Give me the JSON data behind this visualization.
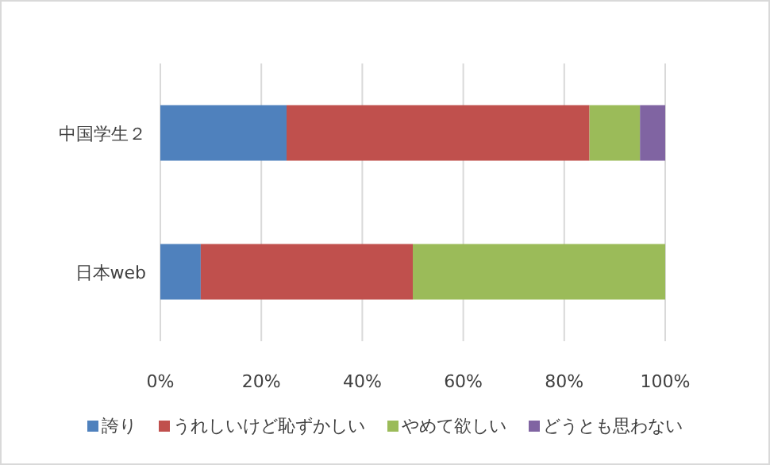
{
  "chart_data": {
    "type": "bar",
    "orientation": "horizontal",
    "stacked": true,
    "categories": [
      "中国学生２",
      "日本web"
    ],
    "series": [
      {
        "name": "誇り",
        "color": "#4f81bd",
        "values": [
          25,
          8
        ]
      },
      {
        "name": "うれしいけど恥ずかしい",
        "color": "#c0504d",
        "values": [
          60,
          42
        ]
      },
      {
        "name": "やめて欲しい",
        "color": "#9bbb59",
        "values": [
          10,
          50
        ]
      },
      {
        "name": "どうとも思わない",
        "color": "#8064a2",
        "values": [
          5,
          0
        ]
      }
    ],
    "xlim": [
      0,
      100
    ],
    "xticks": [
      {
        "value": 0,
        "label": "0%"
      },
      {
        "value": 20,
        "label": "20%"
      },
      {
        "value": 40,
        "label": "40%"
      },
      {
        "value": 60,
        "label": "60%"
      },
      {
        "value": 80,
        "label": "80%"
      },
      {
        "value": 100,
        "label": "100%"
      }
    ],
    "grid": "x",
    "legend": "bottom"
  }
}
